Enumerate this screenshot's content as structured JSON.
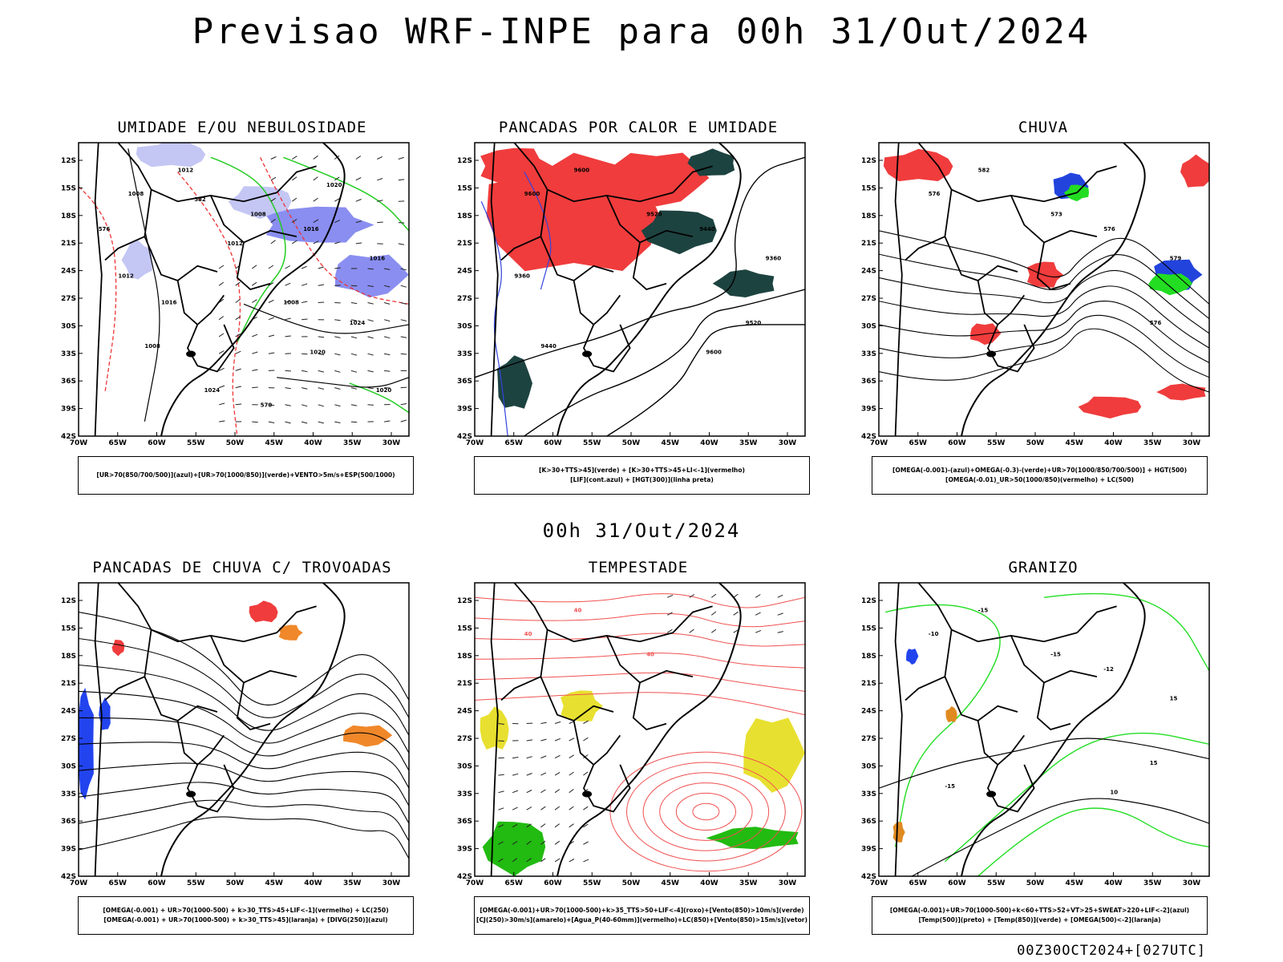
{
  "header": {
    "title": "Previsao WRF-INPE  para 00h 31/Out/2024",
    "mid_date": "00h 31/Out/2024",
    "footer_code": "00Z30OCT2024+[027UTC]"
  },
  "axes": {
    "lat_labels": [
      "12S",
      "15S",
      "18S",
      "21S",
      "24S",
      "27S",
      "30S",
      "33S",
      "36S",
      "39S",
      "42S"
    ],
    "lon_labels": [
      "70W",
      "65W",
      "60W",
      "55W",
      "50W",
      "45W",
      "40W",
      "35W",
      "30W"
    ]
  },
  "panels": [
    {
      "id": "umidade",
      "title": "UMIDADE E/OU NEBULOSIDADE",
      "legend": [
        "[UR>70(850/700/500)](azul)+[UR>70(1000/850)](verde)+VENTO>5m/s+ESP(500/1000)"
      ],
      "contour_labels": [
        "1012",
        "1008",
        "1008",
        "1016",
        "1016",
        "1024",
        "1020",
        "1008",
        "1012",
        "1008",
        "1024",
        "1020",
        "1012",
        "1016",
        "1020",
        "570",
        "576",
        "582"
      ],
      "colors": {
        "blue": "#8a8ef0",
        "light_blue": "#c4c6f4",
        "green": "#22cc22",
        "red": "#ee3333"
      }
    },
    {
      "id": "pancadas-calor",
      "title": "PANCADAS POR CALOR E UMIDADE",
      "legend": [
        "[K>30+TTS>45](verde) + [K>30+TTS>45+LI<-1](vermelho)",
        "[LIF](cont.azul) + [HGT(300)](linha preta)"
      ],
      "contour_labels": [
        "9600",
        "9600",
        "9520",
        "9440",
        "9360",
        "9520",
        "9600",
        "9440",
        "9360"
      ],
      "colors": {
        "red": "#f03c3c",
        "dark": "#1d4340",
        "blue": "#3344dd"
      }
    },
    {
      "id": "chuva",
      "title": "CHUVA",
      "legend": [
        "[OMEGA(-0.001)-(azul)+OMEGA(-0.3)-(verde)+UR>70(1000/850/700/500)] + HGT(500)",
        "[OMEGA(-0.01)_UR>50(1000/850)(vermelho) + LC(500)"
      ],
      "contour_labels": [
        "582",
        "576",
        "573",
        "576",
        "579",
        "576"
      ],
      "colors": {
        "red": "#f03c3c",
        "blue": "#2244dd",
        "green": "#22dd22"
      }
    },
    {
      "id": "pancadas-trovoadas",
      "title": "PANCADAS DE CHUVA C/ TROVOADAS",
      "legend": [
        "[OMEGA(-0.001) + UR>70(1000-500) + k>30_TTS>45+LIF<-1](vermelho) + LC(250)",
        "[OMEGA(-0.001) + UR>70(1000-500) + k>30_TTS>45](laranja) + [DIVG(250)](azul)"
      ],
      "contour_labels": [],
      "colors": {
        "red": "#f03c3c",
        "orange": "#f0882a",
        "blue": "#2244ee"
      }
    },
    {
      "id": "tempestade",
      "title": "TEMPESTADE",
      "legend": [
        "[OMEGA(-0.001)+UR>70(1000-500)+k>35_TTS>50+LIF<-4](roxo)+[Vento(850)>10m/s](verde)",
        "[CJ(250)>30m/s](amarelo)+[Agua_P(40-60mm)](vermelho)+LC(850)+[Vento(850)>15m/s](vetor)"
      ],
      "contour_labels": [
        "40",
        "40",
        "40"
      ],
      "colors": {
        "red": "#f05050",
        "yellow": "#e8e030",
        "green": "#22bb11"
      }
    },
    {
      "id": "granizo",
      "title": "GRANIZO",
      "legend": [
        "[OMEGA(-0.001)+UR>70(1000-500)+k<60+TTS>52+VT>25+SWEAT>220+LIF<-2](azul)",
        "[Temp(500)](preto) + [Temp(850)](verde) + [OMEGA(500)<-2](laranja)"
      ],
      "contour_labels": [
        "-15",
        "-10",
        "-15",
        "-12",
        "15",
        "15",
        "10",
        "-15"
      ],
      "colors": {
        "green": "#22dd22",
        "orange": "#e08a20",
        "blue": "#2244ee"
      }
    }
  ]
}
